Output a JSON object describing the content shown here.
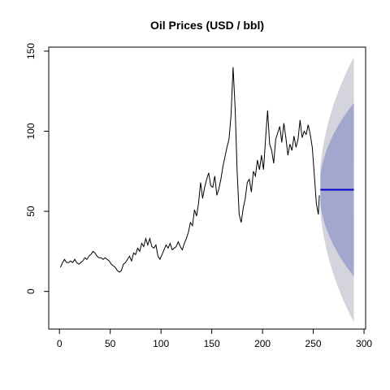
{
  "chart_data": {
    "type": "line",
    "title": "Oil Prices (USD / bbl)",
    "color": "#000000",
    "x": [
      1,
      3,
      5,
      7,
      9,
      11,
      13,
      15,
      17,
      19,
      21,
      23,
      25,
      27,
      29,
      31,
      33,
      35,
      37,
      39,
      41,
      43,
      45,
      47,
      49,
      51,
      53,
      55,
      57,
      59,
      61,
      63,
      65,
      67,
      69,
      71,
      73,
      75,
      77,
      79,
      81,
      83,
      85,
      87,
      89,
      91,
      93,
      95,
      97,
      99,
      101,
      103,
      105,
      107,
      109,
      111,
      113,
      115,
      117,
      119,
      121,
      123,
      125,
      127,
      129,
      131,
      133,
      135,
      137,
      139,
      141,
      143,
      145,
      147,
      149,
      151,
      153,
      155,
      157,
      159,
      161,
      163,
      165,
      167,
      169,
      171,
      173,
      175,
      177,
      179,
      181,
      183,
      185,
      187,
      189,
      191,
      193,
      195,
      197,
      199,
      201,
      203,
      205,
      207,
      209,
      211,
      213,
      215,
      217,
      219,
      221,
      223,
      225,
      227,
      229,
      231,
      233,
      235,
      237,
      239,
      241,
      243,
      245,
      247,
      249,
      251,
      253,
      255,
      256
    ],
    "values": [
      15,
      18,
      20,
      18,
      18,
      19,
      18,
      20,
      18,
      17,
      18,
      19,
      21,
      20,
      22,
      23,
      25,
      24,
      22,
      21,
      21,
      20,
      21,
      20,
      19,
      17,
      16,
      15,
      13,
      12,
      13,
      17,
      18,
      20,
      22,
      19,
      24,
      23,
      27,
      25,
      30,
      28,
      33,
      29,
      33,
      28,
      27,
      29,
      22,
      20,
      23,
      26,
      29,
      27,
      30,
      26,
      27,
      28,
      31,
      28,
      26,
      30,
      33,
      37,
      43,
      41,
      51,
      47,
      55,
      68,
      58,
      65,
      70,
      74,
      66,
      65,
      72,
      60,
      64,
      70,
      78,
      84,
      90,
      95,
      110,
      140,
      115,
      75,
      48,
      43,
      52,
      58,
      68,
      70,
      62,
      75,
      72,
      82,
      76,
      85,
      76,
      95,
      113,
      92,
      88,
      80,
      95,
      99,
      103,
      93,
      105,
      96,
      85,
      92,
      88,
      97,
      90,
      95,
      107,
      96,
      100,
      98,
      104,
      98,
      90,
      73,
      55,
      48,
      60
    ],
    "forecast": {
      "x": [
        257,
        258,
        260,
        263,
        266,
        270,
        275,
        280,
        285,
        290
      ],
      "mean": [
        63.5,
        63.5,
        63.5,
        63.5,
        63.5,
        63.5,
        63.5,
        63.5,
        63.5,
        63.5
      ],
      "lo80": [
        54.2,
        50.3,
        44.9,
        38.9,
        34.1,
        28.7,
        23.0,
        17.9,
        13.4,
        9.3
      ],
      "hi80": [
        72.8,
        76.7,
        82.1,
        88.1,
        92.9,
        98.3,
        104.0,
        109.1,
        113.6,
        117.7
      ],
      "lo95": [
        49.3,
        43.4,
        35.1,
        25.9,
        18.6,
        10.4,
        1.6,
        -6.1,
        -13.0,
        -19.3
      ],
      "hi95": [
        77.7,
        83.6,
        91.9,
        101.1,
        108.4,
        116.6,
        125.4,
        133.1,
        140.0,
        146.3
      ],
      "mean_color": "#0000cc",
      "band80_color": "#a4a7cd",
      "band95_color": "#d4d4dc"
    },
    "xlim": [
      -10.56,
      301.56
    ],
    "ylim": [
      -23.5,
      152.5
    ],
    "xticks": [
      0,
      50,
      100,
      150,
      200,
      250,
      300
    ],
    "yticks": [
      0,
      50,
      100,
      150
    ]
  }
}
